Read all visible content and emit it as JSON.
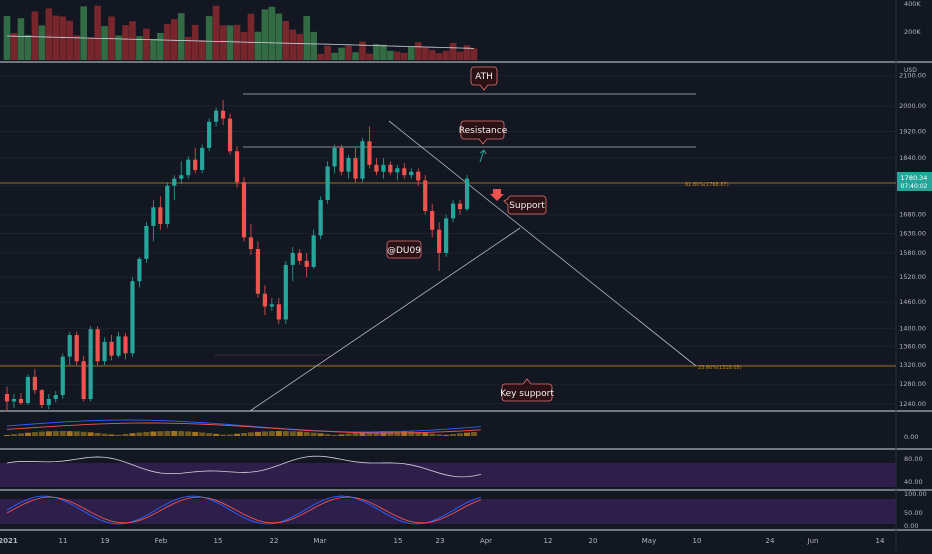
{
  "chart_data": {
    "type": "candlestick",
    "price_axis": {
      "unit": "USD",
      "ticks": [
        "2100.00",
        "2000.00",
        "1920.00",
        "1840.00",
        "1760.00",
        "1680.00",
        "1630.00",
        "1580.00",
        "1520.00",
        "1460.00",
        "1400.00",
        "1360.00",
        "1320.00",
        "1280.00",
        "1240.00"
      ]
    },
    "x_axis": {
      "ticks": [
        "2021",
        "11",
        "19",
        "Feb",
        "15",
        "22",
        "Mar",
        "15",
        "23",
        "Apr",
        "12",
        "20",
        "May",
        "10",
        "24",
        "Jun",
        "14"
      ]
    },
    "current_price": {
      "value": "1780.34",
      "countdown": "07:40:02",
      "color": "#26a69a"
    },
    "candles": [
      {
        "o": 1260,
        "h": 1275,
        "l": 1225,
        "c": 1245
      },
      {
        "o": 1245,
        "h": 1260,
        "l": 1232,
        "c": 1250
      },
      {
        "o": 1250,
        "h": 1262,
        "l": 1238,
        "c": 1242
      },
      {
        "o": 1242,
        "h": 1300,
        "l": 1238,
        "c": 1295
      },
      {
        "o": 1295,
        "h": 1312,
        "l": 1260,
        "c": 1268
      },
      {
        "o": 1268,
        "h": 1270,
        "l": 1232,
        "c": 1238
      },
      {
        "o": 1238,
        "h": 1260,
        "l": 1230,
        "c": 1250
      },
      {
        "o": 1250,
        "h": 1266,
        "l": 1243,
        "c": 1258
      },
      {
        "o": 1258,
        "h": 1345,
        "l": 1250,
        "c": 1338
      },
      {
        "o": 1338,
        "h": 1392,
        "l": 1320,
        "c": 1385
      },
      {
        "o": 1385,
        "h": 1392,
        "l": 1320,
        "c": 1328
      },
      {
        "o": 1328,
        "h": 1340,
        "l": 1245,
        "c": 1250
      },
      {
        "o": 1250,
        "h": 1405,
        "l": 1245,
        "c": 1398
      },
      {
        "o": 1398,
        "h": 1405,
        "l": 1320,
        "c": 1328
      },
      {
        "o": 1328,
        "h": 1380,
        "l": 1320,
        "c": 1370
      },
      {
        "o": 1370,
        "h": 1385,
        "l": 1330,
        "c": 1340
      },
      {
        "o": 1340,
        "h": 1392,
        "l": 1335,
        "c": 1382
      },
      {
        "o": 1382,
        "h": 1390,
        "l": 1332,
        "c": 1345
      },
      {
        "o": 1345,
        "h": 1520,
        "l": 1338,
        "c": 1510
      },
      {
        "o": 1510,
        "h": 1570,
        "l": 1495,
        "c": 1565
      },
      {
        "o": 1565,
        "h": 1660,
        "l": 1555,
        "c": 1650
      },
      {
        "o": 1650,
        "h": 1720,
        "l": 1610,
        "c": 1700
      },
      {
        "o": 1700,
        "h": 1730,
        "l": 1640,
        "c": 1655
      },
      {
        "o": 1655,
        "h": 1770,
        "l": 1645,
        "c": 1760
      },
      {
        "o": 1760,
        "h": 1790,
        "l": 1720,
        "c": 1780
      },
      {
        "o": 1780,
        "h": 1830,
        "l": 1765,
        "c": 1790
      },
      {
        "o": 1790,
        "h": 1845,
        "l": 1780,
        "c": 1835
      },
      {
        "o": 1835,
        "h": 1870,
        "l": 1795,
        "c": 1805
      },
      {
        "o": 1805,
        "h": 1880,
        "l": 1795,
        "c": 1870
      },
      {
        "o": 1870,
        "h": 1960,
        "l": 1860,
        "c": 1950
      },
      {
        "o": 1950,
        "h": 1995,
        "l": 1935,
        "c": 1985
      },
      {
        "o": 1985,
        "h": 2020,
        "l": 1940,
        "c": 1960
      },
      {
        "o": 1960,
        "h": 1975,
        "l": 1850,
        "c": 1860
      },
      {
        "o": 1860,
        "h": 1875,
        "l": 1755,
        "c": 1770
      },
      {
        "o": 1770,
        "h": 1785,
        "l": 1610,
        "c": 1620
      },
      {
        "o": 1620,
        "h": 1655,
        "l": 1575,
        "c": 1590
      },
      {
        "o": 1590,
        "h": 1610,
        "l": 1470,
        "c": 1480
      },
      {
        "o": 1480,
        "h": 1500,
        "l": 1430,
        "c": 1450
      },
      {
        "o": 1450,
        "h": 1470,
        "l": 1440,
        "c": 1455
      },
      {
        "o": 1455,
        "h": 1470,
        "l": 1410,
        "c": 1420
      },
      {
        "o": 1420,
        "h": 1560,
        "l": 1410,
        "c": 1550
      },
      {
        "o": 1550,
        "h": 1595,
        "l": 1510,
        "c": 1580
      },
      {
        "o": 1580,
        "h": 1590,
        "l": 1550,
        "c": 1560
      },
      {
        "o": 1560,
        "h": 1580,
        "l": 1520,
        "c": 1545
      },
      {
        "o": 1545,
        "h": 1640,
        "l": 1540,
        "c": 1625
      },
      {
        "o": 1625,
        "h": 1730,
        "l": 1615,
        "c": 1720
      },
      {
        "o": 1720,
        "h": 1830,
        "l": 1710,
        "c": 1815
      },
      {
        "o": 1815,
        "h": 1880,
        "l": 1795,
        "c": 1870
      },
      {
        "o": 1870,
        "h": 1880,
        "l": 1790,
        "c": 1800
      },
      {
        "o": 1800,
        "h": 1850,
        "l": 1780,
        "c": 1840
      },
      {
        "o": 1840,
        "h": 1870,
        "l": 1770,
        "c": 1780
      },
      {
        "o": 1780,
        "h": 1900,
        "l": 1770,
        "c": 1890
      },
      {
        "o": 1890,
        "h": 1935,
        "l": 1810,
        "c": 1820
      },
      {
        "o": 1820,
        "h": 1840,
        "l": 1790,
        "c": 1800
      },
      {
        "o": 1800,
        "h": 1840,
        "l": 1780,
        "c": 1820
      },
      {
        "o": 1820,
        "h": 1830,
        "l": 1790,
        "c": 1798
      },
      {
        "o": 1798,
        "h": 1820,
        "l": 1775,
        "c": 1810
      },
      {
        "o": 1810,
        "h": 1825,
        "l": 1780,
        "c": 1790
      },
      {
        "o": 1790,
        "h": 1810,
        "l": 1780,
        "c": 1800
      },
      {
        "o": 1800,
        "h": 1810,
        "l": 1760,
        "c": 1775
      },
      {
        "o": 1775,
        "h": 1790,
        "l": 1680,
        "c": 1690
      },
      {
        "o": 1690,
        "h": 1710,
        "l": 1620,
        "c": 1640
      },
      {
        "o": 1640,
        "h": 1660,
        "l": 1535,
        "c": 1580
      },
      {
        "o": 1580,
        "h": 1680,
        "l": 1570,
        "c": 1670
      },
      {
        "o": 1670,
        "h": 1720,
        "l": 1660,
        "c": 1710
      },
      {
        "o": 1710,
        "h": 1720,
        "l": 1680,
        "c": 1695
      },
      {
        "o": 1695,
        "h": 1790,
        "l": 1690,
        "c": 1780
      }
    ],
    "annotations": [
      {
        "label": "ATH"
      },
      {
        "label": "Resistance"
      },
      {
        "label": "Support"
      },
      {
        "label": "@DU09"
      },
      {
        "label": "Key support"
      }
    ],
    "fib_levels": [
      {
        "label": "61.80%(1768.87)",
        "color": "#c58a1f"
      },
      {
        "label": "23.60%(1318.05)",
        "color": "#c58a1f"
      }
    ],
    "volume_axis": {
      "ticks": [
        "400K",
        "200K"
      ]
    },
    "macd": {
      "zero_label": "0.00"
    },
    "rsi": {
      "ticks": [
        "80.00",
        "40.00"
      ]
    },
    "stoch": {
      "ticks": [
        "100.00",
        "50.00",
        "0.00"
      ]
    },
    "colors": {
      "background": "#131722",
      "up": "#26a69a",
      "down": "#ef5350",
      "fib": "#c58a1f",
      "band": "#2d1f4a",
      "callout_fill": "#2a1115",
      "callout_stroke": "#e57373"
    }
  }
}
